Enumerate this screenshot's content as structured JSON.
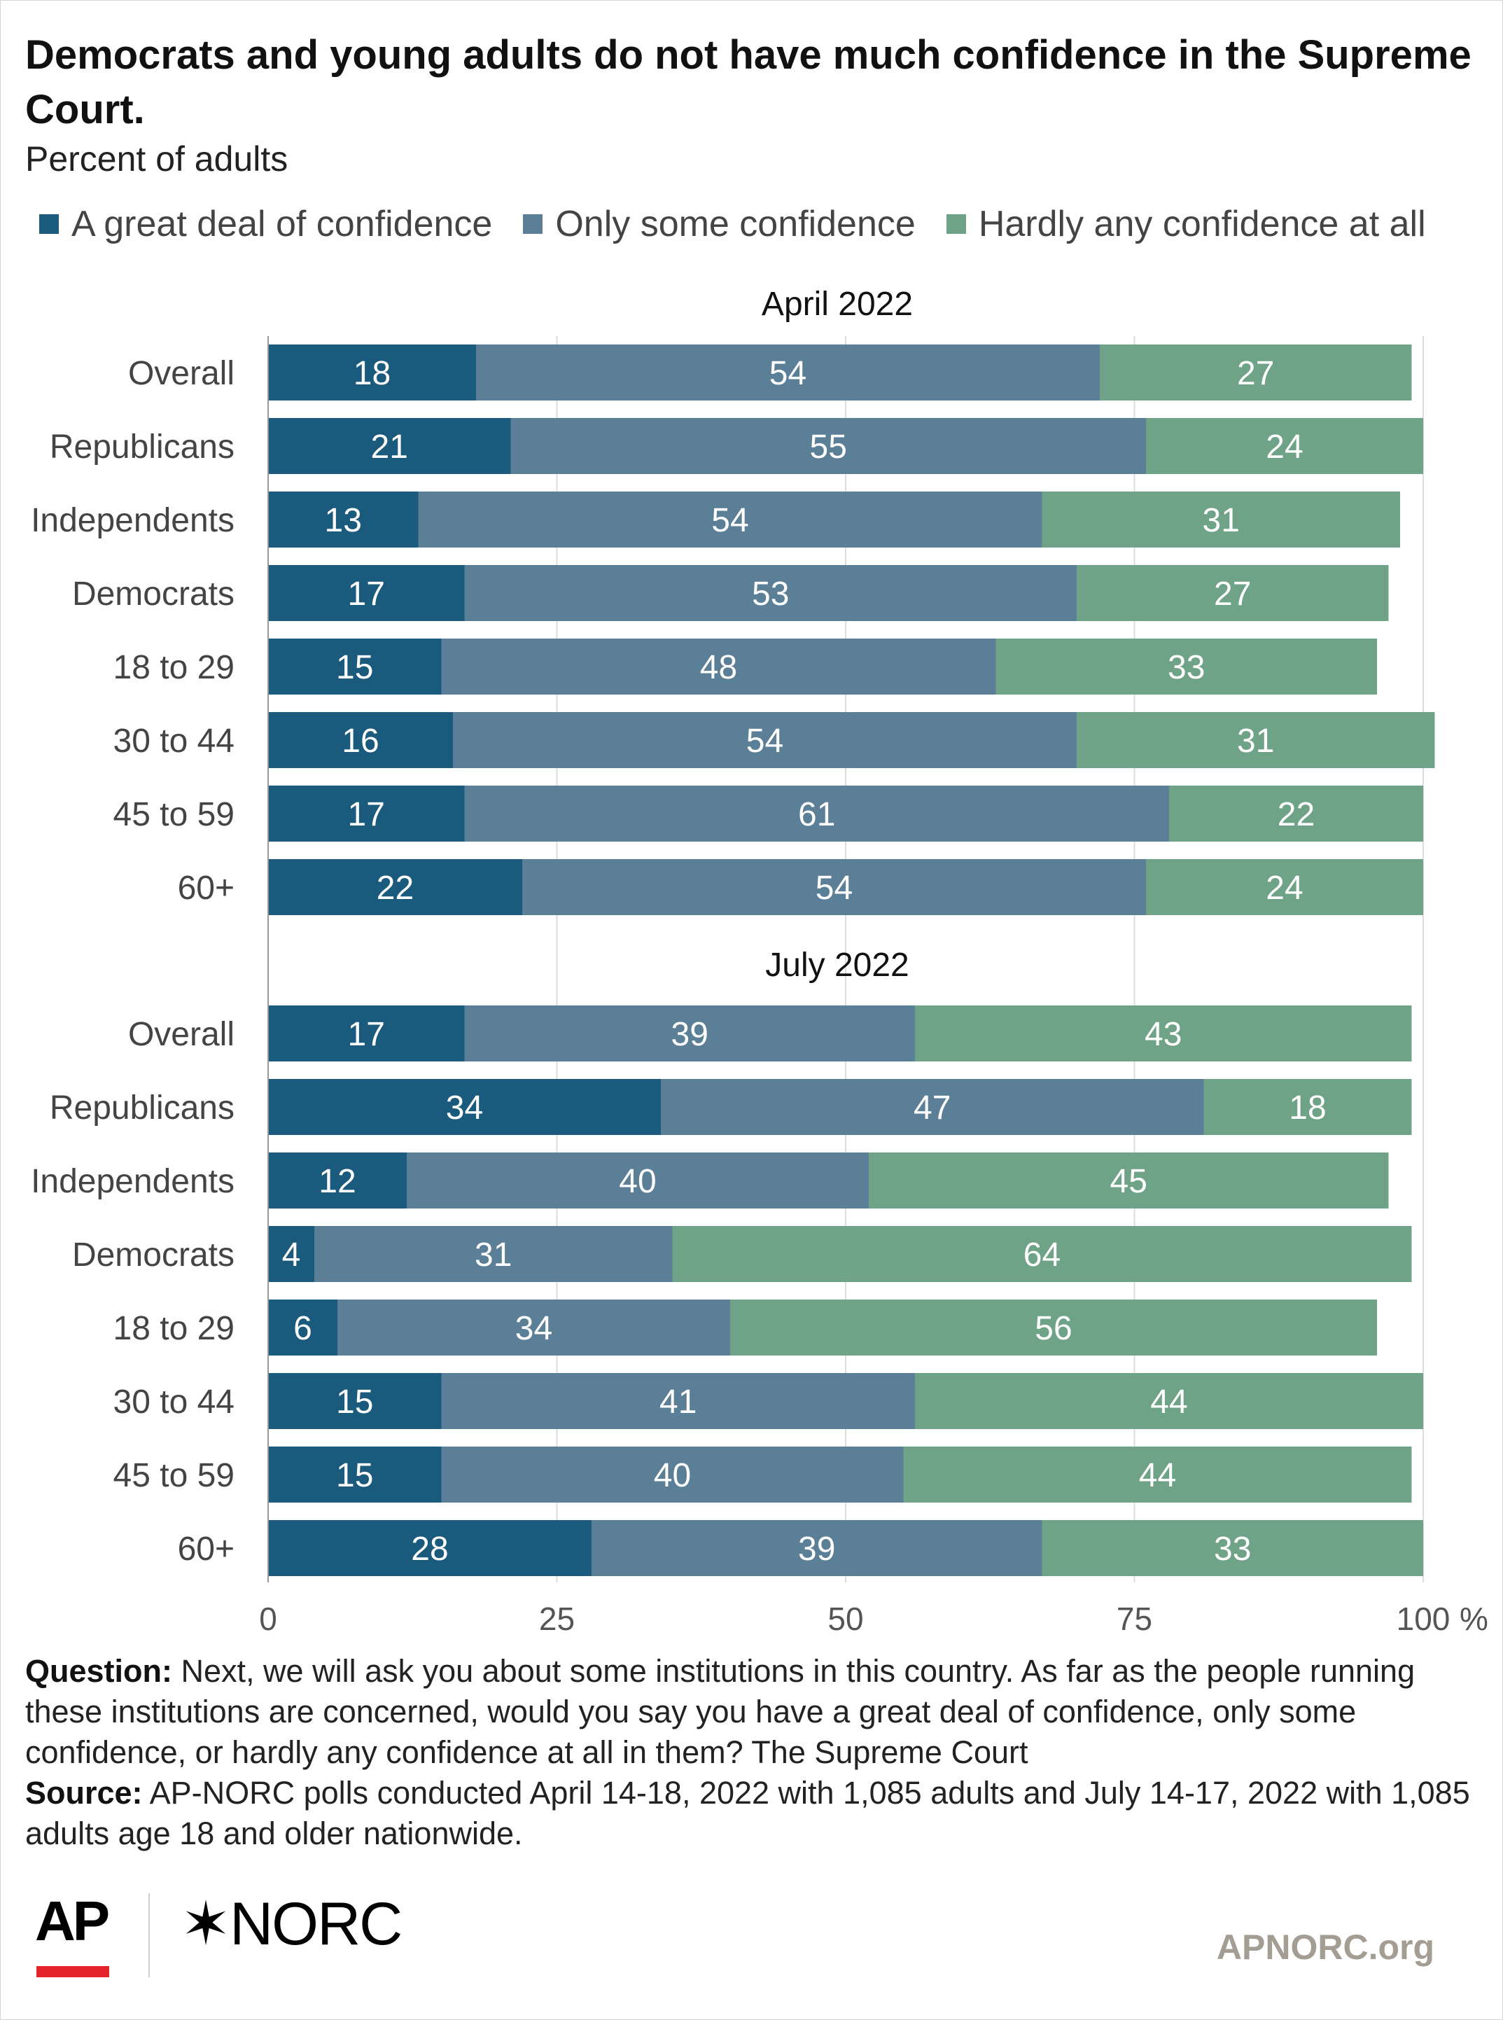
{
  "title": "Democrats and young adults do not have much confidence in the Supreme Court.",
  "subtitle": "Percent of adults",
  "legend": [
    {
      "label": "A great deal of confidence",
      "color": "#1a5a7c"
    },
    {
      "label": "Only some confidence",
      "color": "#5c7f98"
    },
    {
      "label": "Hardly any confidence at all",
      "color": "#6fa388"
    }
  ],
  "notes": {
    "question_label": "Question:",
    "question_text": "Next, we will ask you about some institutions in this country. As far as the people running these institutions are concerned, would you say you have a great deal of confidence, only some confidence, or hardly any confidence at all in them? The Supreme Court",
    "source_label": "Source:",
    "source_text": "AP-NORC polls conducted April 14-18, 2022 with 1,085 adults and July 14-17, 2022 with 1,085 adults age 18 and older nationwide."
  },
  "branding": {
    "ap": "AP",
    "norc": "NORC",
    "norc_mark": "✶",
    "site": "APNORC.org",
    "ap_bar_color": "#e4232b"
  },
  "chart_data": {
    "type": "bar",
    "orientation": "horizontal",
    "stacked": true,
    "xlim": [
      0,
      100
    ],
    "xticks": [
      0,
      25,
      50,
      75,
      100
    ],
    "xtick_labels": [
      "0",
      "25",
      "50",
      "75",
      "100"
    ],
    "x_unit": "%",
    "grid": true,
    "legend_position": "top",
    "series_names": [
      "A great deal of confidence",
      "Only some confidence",
      "Hardly any confidence at all"
    ],
    "colors": [
      "#1a5a7c",
      "#5c7f98",
      "#6fa388"
    ],
    "panels": [
      {
        "title": "April 2022",
        "categories": [
          "Overall",
          "Republicans",
          "Independents",
          "Democrats",
          "18 to 29",
          "30 to 44",
          "45 to 59",
          "60+"
        ],
        "series": [
          {
            "name": "A great deal of confidence",
            "values": [
              18,
              21,
              13,
              17,
              15,
              16,
              17,
              22
            ]
          },
          {
            "name": "Only some confidence",
            "values": [
              54,
              55,
              54,
              53,
              48,
              54,
              61,
              54
            ]
          },
          {
            "name": "Hardly any confidence at all",
            "values": [
              27,
              24,
              31,
              27,
              33,
              31,
              22,
              24
            ]
          }
        ]
      },
      {
        "title": "July 2022",
        "categories": [
          "Overall",
          "Republicans",
          "Independents",
          "Democrats",
          "18 to 29",
          "30 to 44",
          "45 to 59",
          "60+"
        ],
        "series": [
          {
            "name": "A great deal of confidence",
            "values": [
              17,
              34,
              12,
              4,
              6,
              15,
              15,
              28
            ]
          },
          {
            "name": "Only some confidence",
            "values": [
              39,
              47,
              40,
              31,
              34,
              41,
              40,
              39
            ]
          },
          {
            "name": "Hardly any confidence at all",
            "values": [
              43,
              18,
              45,
              64,
              56,
              44,
              44,
              33
            ]
          }
        ]
      }
    ]
  }
}
